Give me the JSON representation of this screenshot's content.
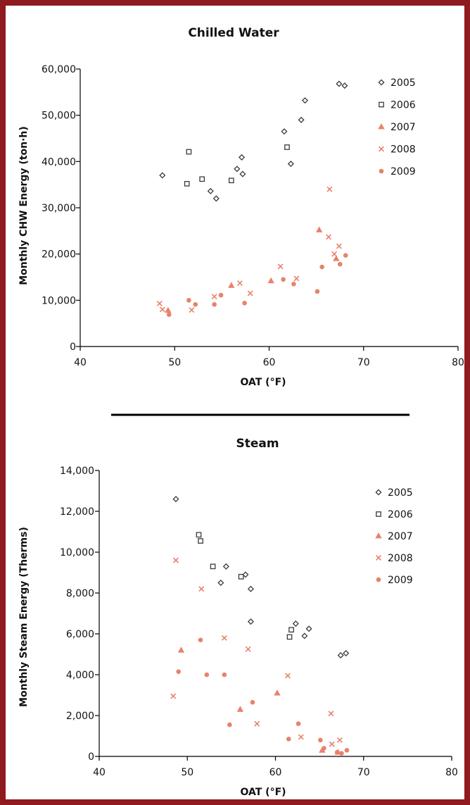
{
  "colors": {
    "frame": "#8f1a1f",
    "dark_series": "#3a3a3a",
    "orange_series": "#e8826a"
  },
  "legend_series": [
    "2005",
    "2006",
    "2007",
    "2008",
    "2009"
  ],
  "chart_data": [
    {
      "type": "scatter",
      "title": "Chilled Water",
      "xlabel": "OAT (°F)",
      "ylabel": "Monthly CHW Energy (ton·h)",
      "xlim": [
        40,
        80
      ],
      "ylim": [
        0,
        60000
      ],
      "xticks": [
        "40",
        "50",
        "60",
        "70",
        "80"
      ],
      "yticks": [
        "0",
        "10,000",
        "20,000",
        "30,000",
        "40,000",
        "50,000",
        "60,000"
      ],
      "legend_position": "top-right",
      "series": [
        {
          "name": "2005",
          "marker": "diamond",
          "color": "dark",
          "points": [
            [
              48.7,
              37000
            ],
            [
              53.8,
              33600
            ],
            [
              54.4,
              32000
            ],
            [
              56.6,
              38400
            ],
            [
              57.1,
              40900
            ],
            [
              57.2,
              37300
            ],
            [
              61.6,
              46500
            ],
            [
              62.3,
              39500
            ],
            [
              63.4,
              49000
            ],
            [
              63.8,
              53200
            ],
            [
              67.4,
              56800
            ],
            [
              68.0,
              56400
            ]
          ]
        },
        {
          "name": "2006",
          "marker": "square",
          "color": "dark",
          "points": [
            [
              51.3,
              35200
            ],
            [
              51.5,
              42100
            ],
            [
              52.9,
              36200
            ],
            [
              56.0,
              35900
            ],
            [
              61.9,
              43100
            ]
          ]
        },
        {
          "name": "2007",
          "marker": "triangle",
          "color": "orange",
          "points": [
            [
              49.3,
              7800
            ],
            [
              56.0,
              13200
            ],
            [
              60.2,
              14200
            ],
            [
              65.3,
              25200
            ],
            [
              67.1,
              19000
            ]
          ]
        },
        {
          "name": "2008",
          "marker": "cross",
          "color": "orange",
          "points": [
            [
              48.4,
              9300
            ],
            [
              48.7,
              8000
            ],
            [
              51.8,
              7900
            ],
            [
              54.2,
              10800
            ],
            [
              56.9,
              13700
            ],
            [
              58.0,
              11500
            ],
            [
              61.2,
              17300
            ],
            [
              62.9,
              14700
            ],
            [
              66.4,
              34000
            ],
            [
              66.3,
              23700
            ],
            [
              66.9,
              20000
            ],
            [
              67.4,
              21700
            ]
          ]
        },
        {
          "name": "2009",
          "marker": "circle",
          "color": "orange",
          "points": [
            [
              49.4,
              6900
            ],
            [
              51.5,
              10000
            ],
            [
              52.2,
              9100
            ],
            [
              54.2,
              9100
            ],
            [
              54.9,
              11100
            ],
            [
              57.4,
              9400
            ],
            [
              61.5,
              14500
            ],
            [
              62.6,
              13500
            ],
            [
              65.1,
              11900
            ],
            [
              65.6,
              17200
            ],
            [
              67.5,
              17800
            ],
            [
              68.1,
              19700
            ]
          ]
        }
      ]
    },
    {
      "type": "scatter",
      "title": "Steam",
      "xlabel": "OAT (°F)",
      "ylabel": "Monthly Steam Energy (Therms)",
      "xlim": [
        40,
        80
      ],
      "ylim": [
        0,
        14000
      ],
      "xticks": [
        "40",
        "50",
        "60",
        "70",
        "80"
      ],
      "yticks": [
        "0",
        "2,000",
        "4,000",
        "6,000",
        "8,000",
        "10,000",
        "12,000",
        "14,000"
      ],
      "legend_position": "top-right",
      "series": [
        {
          "name": "2005",
          "marker": "diamond",
          "color": "dark",
          "points": [
            [
              48.7,
              12600
            ],
            [
              53.8,
              8500
            ],
            [
              54.4,
              9300
            ],
            [
              56.6,
              8900
            ],
            [
              57.2,
              8200
            ],
            [
              57.2,
              6600
            ],
            [
              62.3,
              6500
            ],
            [
              63.3,
              5900
            ],
            [
              63.8,
              6250
            ],
            [
              67.4,
              4950
            ],
            [
              68.0,
              5050
            ]
          ]
        },
        {
          "name": "2006",
          "marker": "square",
          "color": "dark",
          "points": [
            [
              51.3,
              10850
            ],
            [
              51.5,
              10550
            ],
            [
              52.9,
              9300
            ],
            [
              56.1,
              8800
            ],
            [
              61.8,
              6200
            ],
            [
              61.6,
              5850
            ]
          ]
        },
        {
          "name": "2007",
          "marker": "triangle",
          "color": "orange",
          "points": [
            [
              49.3,
              5200
            ],
            [
              56.0,
              2300
            ],
            [
              60.2,
              3100
            ],
            [
              65.3,
              300
            ],
            [
              67.1,
              200
            ]
          ]
        },
        {
          "name": "2008",
          "marker": "cross",
          "color": "orange",
          "points": [
            [
              48.4,
              2950
            ],
            [
              48.7,
              9600
            ],
            [
              51.6,
              8200
            ],
            [
              54.2,
              5800
            ],
            [
              56.9,
              5250
            ],
            [
              57.9,
              1600
            ],
            [
              61.4,
              3950
            ],
            [
              62.9,
              950
            ],
            [
              66.3,
              2100
            ],
            [
              66.4,
              600
            ],
            [
              67.3,
              800
            ]
          ]
        },
        {
          "name": "2009",
          "marker": "circle",
          "color": "orange",
          "points": [
            [
              49.0,
              4150
            ],
            [
              51.5,
              5700
            ],
            [
              52.2,
              4000
            ],
            [
              54.2,
              4000
            ],
            [
              54.8,
              1550
            ],
            [
              57.4,
              2650
            ],
            [
              61.5,
              850
            ],
            [
              62.6,
              1600
            ],
            [
              65.1,
              800
            ],
            [
              65.5,
              400
            ],
            [
              67.0,
              200
            ],
            [
              67.5,
              150
            ],
            [
              68.1,
              300
            ]
          ]
        }
      ]
    }
  ]
}
